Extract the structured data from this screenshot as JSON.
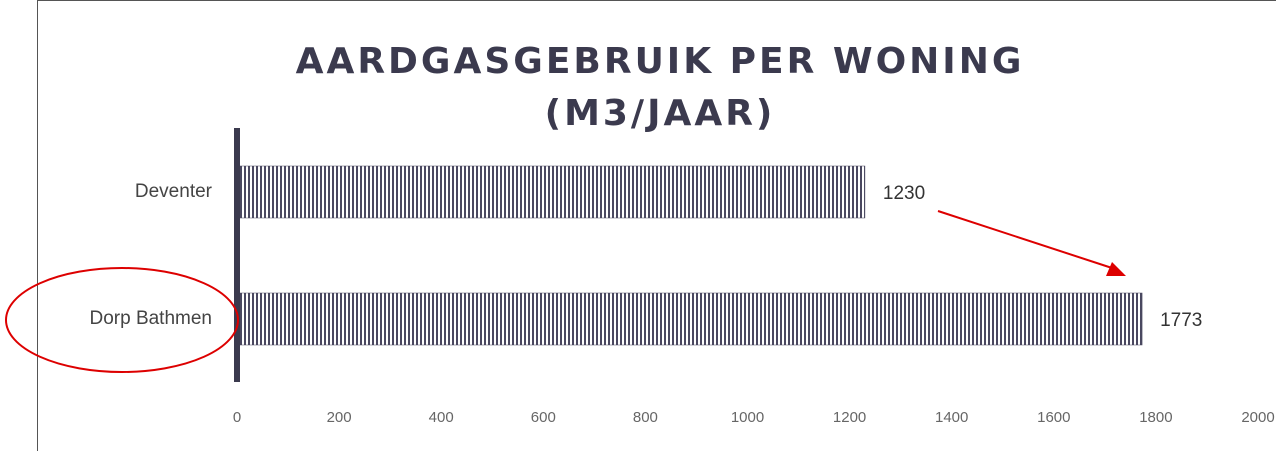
{
  "chart_data": {
    "type": "bar",
    "orientation": "horizontal",
    "title": "AARDGASGEBRUIK PER WONING (M3/JAAR)",
    "categories": [
      "Deventer",
      "Dorp Bathmen"
    ],
    "values": [
      1230,
      1773
    ],
    "color": "#4a4860",
    "xlim": [
      0,
      2000
    ],
    "xticks": [
      0,
      200,
      400,
      600,
      800,
      1000,
      1200,
      1400,
      1600,
      1800,
      2000
    ]
  }
}
